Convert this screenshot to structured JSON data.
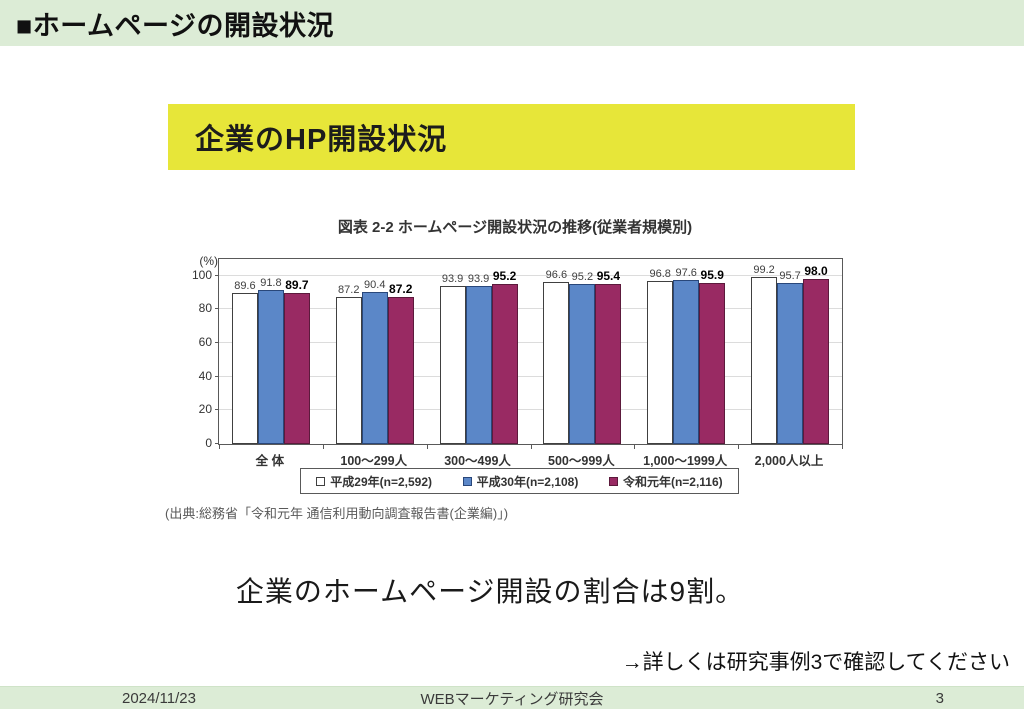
{
  "header": {
    "title": "■ホームページの開設状況"
  },
  "title_box": {
    "label": "企業のHP開設状況"
  },
  "chart_data": {
    "type": "bar",
    "title": "図表 2-2 ホームページ開設状況の推移(従業者規模別)",
    "ylabel": "(%)",
    "ylim": [
      0,
      110
    ],
    "yticks": [
      0,
      20,
      40,
      60,
      80,
      100
    ],
    "grid": true,
    "legend_position": "bottom",
    "categories": [
      "全 体",
      "100〜299人",
      "300〜499人",
      "500〜999人",
      "1,000〜1999人",
      "2,000人以上"
    ],
    "series": [
      {
        "name": "平成29年(n=2,592)",
        "color": "#ffffff",
        "border": "#404040",
        "values": [
          89.6,
          87.2,
          93.9,
          96.6,
          96.8,
          99.2
        ]
      },
      {
        "name": "平成30年(n=2,108)",
        "color": "#5b87c8",
        "border": "#29477a",
        "values": [
          91.8,
          90.4,
          93.9,
          95.2,
          97.6,
          95.7
        ]
      },
      {
        "name": "令和元年(n=2,116)",
        "color": "#992a63",
        "border": "#5c1a3c",
        "values": [
          89.7,
          87.2,
          95.2,
          95.4,
          95.9,
          98.0
        ]
      }
    ]
  },
  "source": "(出典:総務省「令和元年 通信利用動向調査報告書(企業編)」)",
  "message": "企業のホームページ開設の割合は9割。",
  "note": "→詳しくは研究事例3で確認してください",
  "footer": {
    "date": "2024/11/23",
    "center": "WEBマーケティング研究会",
    "page": "3"
  },
  "colors": {
    "band_green": "#dcecd6",
    "accent_yellow": "#e7e639",
    "bar_blue": "#5b87c8",
    "bar_magenta": "#992a63"
  }
}
